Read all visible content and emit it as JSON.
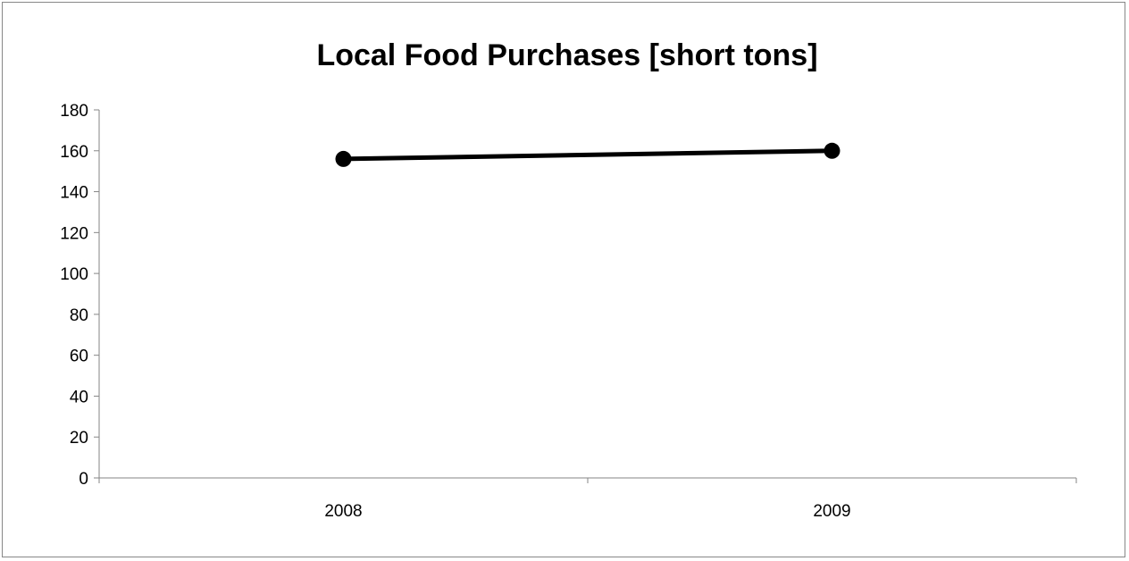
{
  "chart_data": {
    "type": "line",
    "title": "Local Food Purchases [short tons]",
    "xlabel": "",
    "ylabel": "",
    "categories": [
      "2008",
      "2009"
    ],
    "series": [
      {
        "values": [
          156,
          160
        ],
        "color": "#000000",
        "marker": "circle"
      }
    ],
    "ylim": [
      0,
      180
    ],
    "yticks": [
      0,
      20,
      40,
      60,
      80,
      100,
      120,
      140,
      160,
      180
    ],
    "grid": false,
    "legend": "none"
  }
}
